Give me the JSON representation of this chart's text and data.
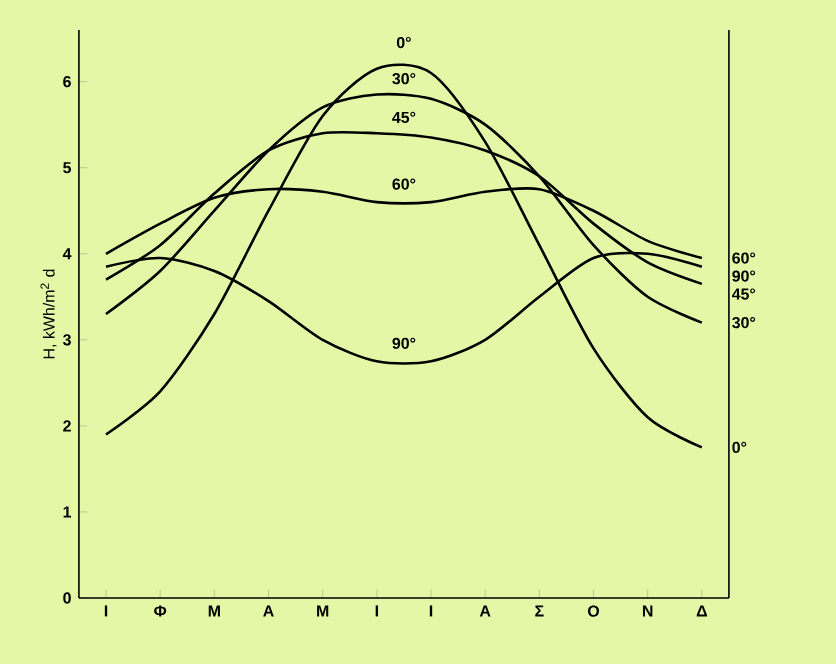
{
  "chart_data": {
    "type": "line",
    "ylabel": "H, kWh/m$^{2}$ d",
    "categories": [
      "Ι",
      "Φ",
      "Μ",
      "Α",
      "Μ",
      "Ι",
      "Ι",
      "Α",
      "Σ",
      "Ο",
      "Ν",
      "Δ"
    ],
    "ylim": [
      0,
      6.6
    ],
    "yticks": [
      0,
      1,
      2,
      3,
      4,
      5,
      6
    ],
    "grid": false,
    "legend": false,
    "marker": "none",
    "line_style": "solid",
    "series": [
      {
        "name": "0°",
        "color": "#000000",
        "values": [
          1.9,
          2.4,
          3.3,
          4.5,
          5.6,
          6.15,
          6.1,
          5.3,
          4.1,
          2.9,
          2.1,
          1.75
        ]
      },
      {
        "name": "30°",
        "color": "#000000",
        "values": [
          3.3,
          3.8,
          4.5,
          5.2,
          5.7,
          5.85,
          5.8,
          5.5,
          4.9,
          4.1,
          3.5,
          3.2
        ]
      },
      {
        "name": "45°",
        "color": "#000000",
        "values": [
          3.7,
          4.1,
          4.7,
          5.2,
          5.4,
          5.4,
          5.35,
          5.2,
          4.9,
          4.35,
          3.9,
          3.65
        ]
      },
      {
        "name": "60°",
        "color": "#000000",
        "values": [
          4.0,
          4.35,
          4.65,
          4.75,
          4.72,
          4.6,
          4.6,
          4.72,
          4.75,
          4.5,
          4.15,
          3.95
        ]
      },
      {
        "name": "90°",
        "color": "#000000",
        "values": [
          3.85,
          3.95,
          3.8,
          3.45,
          3.0,
          2.75,
          2.75,
          3.0,
          3.5,
          3.95,
          4.0,
          3.85
        ]
      }
    ],
    "annotations": [
      "0°",
      "30°",
      "45°",
      "60°",
      "90°"
    ]
  }
}
